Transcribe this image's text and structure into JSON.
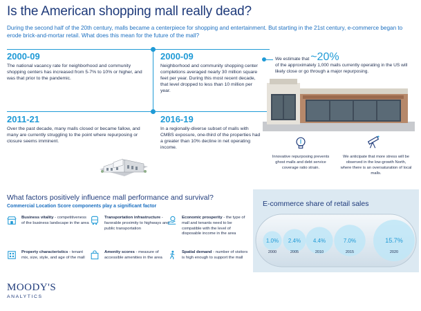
{
  "header": {
    "title": "Is the American shopping mall really dead?",
    "intro": "During the second half of the 20th century, malls became a centerpiece for shopping and entertainment. But starting in the 21st century, e-commerce began to erode brick-and-mortar retail. What does this mean for the future of the mall?"
  },
  "timeline": [
    {
      "year": "2000-09",
      "text": "The national vacancy rate for neighborhood and community shopping centers has increased from 5-7% to 10% or higher, and was that prior to the pandemic."
    },
    {
      "year": "2000-09",
      "text": "Neighborhood and community shopping center completions averaged nearly 30 million square feet per year. During this most recent decade, that level dropped to less than 10 million per year."
    },
    {
      "year": "2011-21",
      "text": "Over the past decade, many malls closed or became fallow, and many are currently struggling to the point where repurposing or closure seems imminent."
    },
    {
      "year": "2016-19",
      "text": "In a regionally-diverse subset of malls with CMBS exposure, one-third of the properties had a greater than 10% decline in net operating income."
    }
  ],
  "estimate": {
    "before": "We estimate that",
    "pct": "~20%",
    "after": "of the approximately 1,000 malls currently operating in the US will likely close or go through a major repurposing."
  },
  "notes": [
    {
      "icon": "lightbulb-icon",
      "text": "Innovative repurposing prevents ghost malls and debt service coverage ratio strain."
    },
    {
      "icon": "telescope-icon",
      "text": "We anticipate that more stress will be observed in the low-growth North, where there is an oversaturation of local malls."
    }
  ],
  "factors": {
    "heading": "What factors positively influence mall performance and survival?",
    "subheading": "Commercial Location Score components play a significant factor",
    "items": [
      {
        "icon": "storefront-icon",
        "bold": "Business vitality",
        "text": " - competitiveness of the business landscape in the area"
      },
      {
        "icon": "bus-icon",
        "bold": "Transportation infrastructure",
        "text": " - favorable proximity to highways and public transportation"
      },
      {
        "icon": "coin-hand-icon",
        "bold": "Economic prosperity",
        "text": " - the type of mall and tenants need to be compatible with the level of disposable income in the area"
      },
      {
        "icon": "building-icon",
        "bold": "Property characteristics",
        "text": " - tenant mix, size, style, and age of the mall"
      },
      {
        "icon": "shopping-bag-icon",
        "bold": "Amenity scores",
        "text": " - measure of accessible amenities in the area"
      },
      {
        "icon": "walking-person-icon",
        "bold": "Spatial demand",
        "text": " - number of visitors is high enough to support the mall"
      }
    ]
  },
  "chart_data": {
    "type": "bubble",
    "title": "E-commerce share of retail sales",
    "categories": [
      "2000",
      "2005",
      "2010",
      "2015",
      "2020"
    ],
    "values": [
      1.0,
      2.4,
      4.4,
      7.0,
      15.7
    ],
    "labels": [
      "1.0%",
      "2.4%",
      "4.4%",
      "7.0%",
      "15.7%"
    ],
    "unit": "%"
  },
  "brand": {
    "name": "MOODY'S",
    "sub": "ANALYTICS"
  },
  "colors": {
    "accent": "#1f9ad6",
    "navy": "#1e3a7a",
    "bubble": "#bfe6f7",
    "panel": "#dce9f2"
  }
}
